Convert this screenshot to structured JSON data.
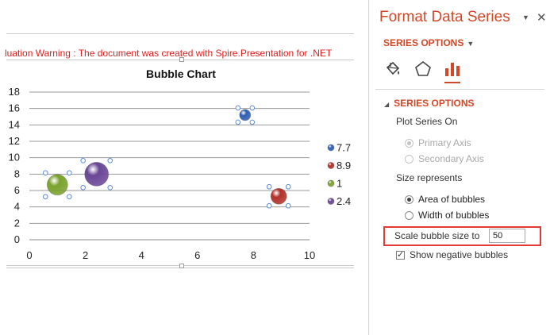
{
  "warning_text": "luation Warning : The document was created with  Spire.Presentation for .NET",
  "chart_data": {
    "type": "bubble",
    "title": "Bubble Chart",
    "xlim": [
      0,
      10
    ],
    "ylim": [
      0,
      18
    ],
    "x_ticks": [
      "0",
      "2",
      "4",
      "6",
      "8",
      "10"
    ],
    "y_ticks": [
      "0",
      "2",
      "4",
      "6",
      "8",
      "10",
      "12",
      "14",
      "16",
      "18"
    ],
    "grid": "horizontal",
    "legend_position": "right",
    "series": [
      {
        "name": "7.7",
        "x": 7.7,
        "y": 15.2,
        "color": "#2f5fb3"
      },
      {
        "name": "8.9",
        "x": 8.9,
        "y": 5.3,
        "color": "#b3302a"
      },
      {
        "name": "1",
        "x": 1.0,
        "y": 6.7,
        "color": "#7aa22c"
      },
      {
        "name": "2.4",
        "x": 2.4,
        "y": 8.0,
        "color": "#6a4596"
      }
    ]
  },
  "pane": {
    "title": "Format Data Series",
    "options_dropdown": "SERIES OPTIONS",
    "tabs": [
      {
        "name": "fill-line-icon"
      },
      {
        "name": "effects-pentagon-icon"
      },
      {
        "name": "series-options-bar-icon",
        "active": true
      }
    ],
    "section_header": "SERIES OPTIONS",
    "plot_series_on": "Plot Series On",
    "primary_axis": "Primary Axis",
    "secondary_axis": "Secondary Axis",
    "size_represents": "Size represents",
    "area_of_bubbles": "Area of bubbles",
    "width_of_bubbles": "Width of bubbles",
    "scale_label": "Scale bubble size to",
    "scale_value": "50",
    "show_negative": "Show negative bubbles",
    "accent_color": "#d24726",
    "highlight_color": "#e53935"
  }
}
